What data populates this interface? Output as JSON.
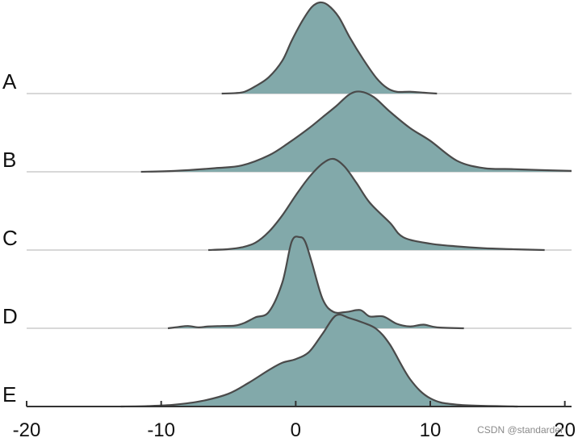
{
  "chart_data": {
    "type": "area",
    "subtype": "ridgeline",
    "title": "",
    "xlabel": "",
    "ylabel": "",
    "xlim": [
      -20,
      20.5
    ],
    "x_ticks": [
      -20,
      -10,
      0,
      10,
      20
    ],
    "x_tick_labels": [
      "-20",
      "-10",
      "0",
      "10",
      "20"
    ],
    "grid": false,
    "fill_color": "#82a9aa",
    "line_color": "#4a4a4a",
    "baseline_color": "#d8d8d8",
    "axis_color": "#333333",
    "series": [
      {
        "name": "A",
        "x": [
          -5.5,
          -4.5,
          -3.8,
          -3,
          -2,
          -1,
          -0.3,
          0.5,
          1.2,
          1.8,
          2.4,
          3.2,
          4,
          5,
          6,
          6.8,
          7.5,
          8.5,
          9.5,
          10.5
        ],
        "y": [
          0,
          0.005,
          0.02,
          0.08,
          0.18,
          0.36,
          0.58,
          0.8,
          0.95,
          1.0,
          0.97,
          0.84,
          0.62,
          0.38,
          0.17,
          0.06,
          0.02,
          0.02,
          0.01,
          0
        ]
      },
      {
        "name": "B",
        "x": [
          -11.5,
          -9,
          -6,
          -4,
          -2,
          -0.5,
          1,
          2,
          3,
          4,
          4.8,
          5.8,
          7,
          8.5,
          10,
          12,
          14,
          16,
          18,
          20.5
        ],
        "y": [
          0,
          0.01,
          0.04,
          0.07,
          0.18,
          0.32,
          0.48,
          0.6,
          0.72,
          0.85,
          0.88,
          0.82,
          0.66,
          0.48,
          0.34,
          0.12,
          0.04,
          0.03,
          0.02,
          0.01
        ]
      },
      {
        "name": "C",
        "x": [
          -6.5,
          -5,
          -4,
          -3,
          -2,
          -1,
          0,
          1,
          2,
          2.8,
          3.6,
          4.5,
          5.5,
          7,
          8,
          10,
          12,
          14,
          16,
          18.5
        ],
        "y": [
          0,
          0.01,
          0.03,
          0.08,
          0.2,
          0.38,
          0.6,
          0.8,
          0.95,
          1.0,
          0.92,
          0.74,
          0.52,
          0.3,
          0.14,
          0.07,
          0.04,
          0.02,
          0.01,
          0
        ]
      },
      {
        "name": "D",
        "x": [
          -9.5,
          -8.7,
          -8,
          -7.2,
          -6.5,
          -5.5,
          -4.5,
          -3.8,
          -3,
          -2,
          -1,
          -0.3,
          0.3,
          0.7,
          1.2,
          2,
          2.8,
          3.8,
          4.8,
          5.5,
          6.5,
          7.5,
          8.5,
          9.5,
          10.5,
          12.5
        ],
        "y": [
          0,
          0.015,
          0.025,
          0.01,
          0.02,
          0.025,
          0.03,
          0.06,
          0.12,
          0.18,
          0.5,
          0.95,
          1.0,
          0.95,
          0.72,
          0.32,
          0.18,
          0.18,
          0.2,
          0.13,
          0.13,
          0.05,
          0.02,
          0.04,
          0.01,
          0
        ]
      },
      {
        "name": "E",
        "x": [
          -13,
          -11,
          -9,
          -7,
          -5,
          -3.5,
          -2,
          -1,
          0,
          1,
          2,
          3,
          4,
          5,
          6,
          7,
          8.5,
          10,
          12,
          16.5
        ],
        "y": [
          0,
          0.005,
          0.02,
          0.06,
          0.14,
          0.26,
          0.4,
          0.48,
          0.52,
          0.6,
          0.8,
          1.0,
          0.97,
          0.92,
          0.85,
          0.68,
          0.3,
          0.09,
          0.02,
          0
        ]
      }
    ]
  },
  "watermark": "CSDN @standarder"
}
